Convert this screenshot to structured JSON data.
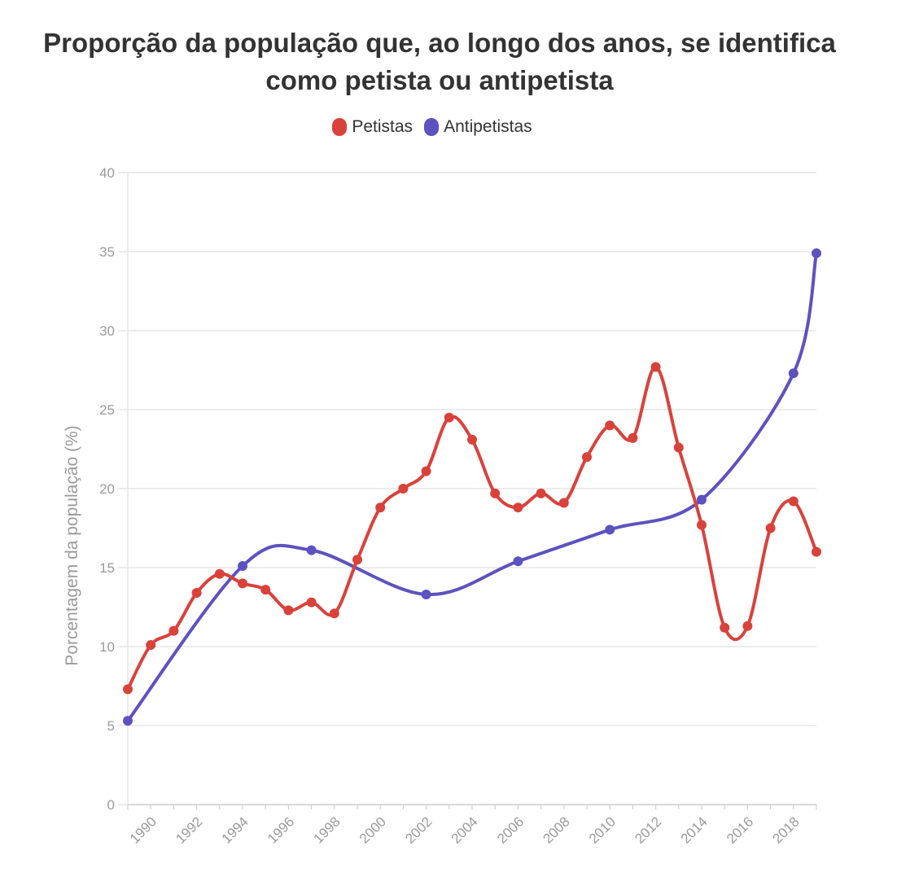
{
  "title": "Proporção da população que, ao longo dos anos, se identifica como petista ou antipetista",
  "legend": [
    {
      "name": "Petistas",
      "color": "#d9423b"
    },
    {
      "name": "Antipetistas",
      "color": "#5c52c0"
    }
  ],
  "chart_data": {
    "type": "line",
    "title": "Proporção da população que, ao longo dos anos, se identifica como petista ou antipetista",
    "xlabel": "",
    "ylabel": "Porcentagem da população (%)",
    "xlim": [
      1989,
      2019
    ],
    "ylim": [
      0,
      40
    ],
    "yticks": [
      0,
      5,
      10,
      15,
      20,
      25,
      30,
      35,
      40
    ],
    "xticks": [
      1990,
      1992,
      1994,
      1996,
      1998,
      2000,
      2002,
      2004,
      2006,
      2008,
      2010,
      2012,
      2014,
      2016,
      2018
    ],
    "grid": true,
    "legend_position": "top",
    "series": [
      {
        "name": "Petistas",
        "color": "#d9423b",
        "points": [
          [
            1989,
            7.3
          ],
          [
            1990,
            10.1
          ],
          [
            1991,
            11.0
          ],
          [
            1992,
            13.4
          ],
          [
            1993,
            14.6
          ],
          [
            1994,
            14.0
          ],
          [
            1995,
            13.6
          ],
          [
            1996,
            12.3
          ],
          [
            1997,
            12.8
          ],
          [
            1998,
            12.1
          ],
          [
            1999,
            15.5
          ],
          [
            2000,
            18.8
          ],
          [
            2001,
            20.0
          ],
          [
            2002,
            21.1
          ],
          [
            2003,
            24.5
          ],
          [
            2004,
            23.1
          ],
          [
            2005,
            19.7
          ],
          [
            2006,
            18.8
          ],
          [
            2007,
            19.7
          ],
          [
            2008,
            19.1
          ],
          [
            2009,
            22.0
          ],
          [
            2010,
            24.0
          ],
          [
            2011,
            23.2
          ],
          [
            2012,
            27.7
          ],
          [
            2013,
            22.6
          ],
          [
            2014,
            17.7
          ],
          [
            2015,
            11.2
          ],
          [
            2016,
            11.3
          ],
          [
            2017,
            17.5
          ],
          [
            2018,
            19.2
          ],
          [
            2019,
            16.0
          ]
        ]
      },
      {
        "name": "Antipetistas",
        "color": "#5c52c0",
        "points": [
          [
            1989,
            5.3
          ],
          [
            1994,
            15.1
          ],
          [
            1997,
            16.1
          ],
          [
            2002,
            13.3
          ],
          [
            2006,
            15.4
          ],
          [
            2010,
            17.4
          ],
          [
            2014,
            19.3
          ],
          [
            2018,
            27.3
          ],
          [
            2019,
            34.9
          ]
        ]
      }
    ]
  }
}
